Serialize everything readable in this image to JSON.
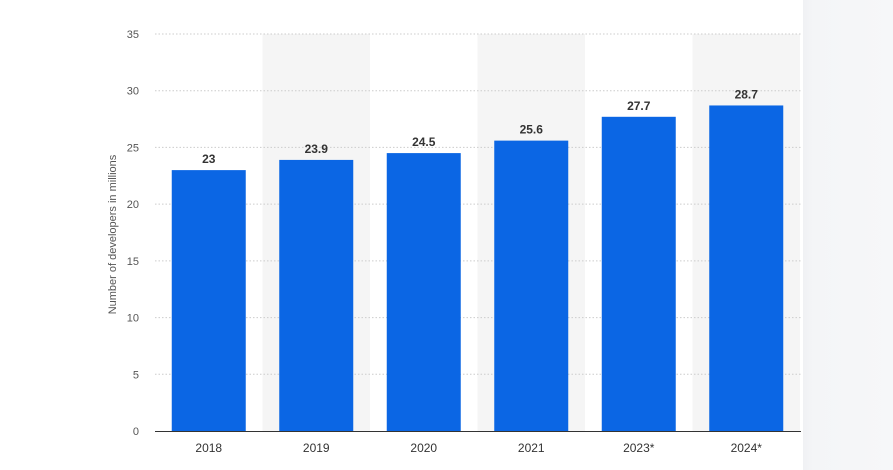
{
  "chart_data": {
    "type": "bar",
    "categories": [
      "2018",
      "2019",
      "2020",
      "2021",
      "2023*",
      "2024*"
    ],
    "values": [
      23,
      23.9,
      24.5,
      25.6,
      27.7,
      28.7
    ],
    "value_labels": [
      "23",
      "23.9",
      "24.5",
      "25.6",
      "27.7",
      "28.7"
    ],
    "title": "",
    "xlabel": "",
    "ylabel": "Number of developers in millions",
    "ylim": [
      0,
      35
    ],
    "yticks": [
      0,
      5,
      10,
      15,
      20,
      25,
      30,
      35
    ],
    "grid": true,
    "bar_color": "#0b66e4",
    "alt_band_color": "#f5f5f5",
    "grid_color": "#cccccc"
  }
}
